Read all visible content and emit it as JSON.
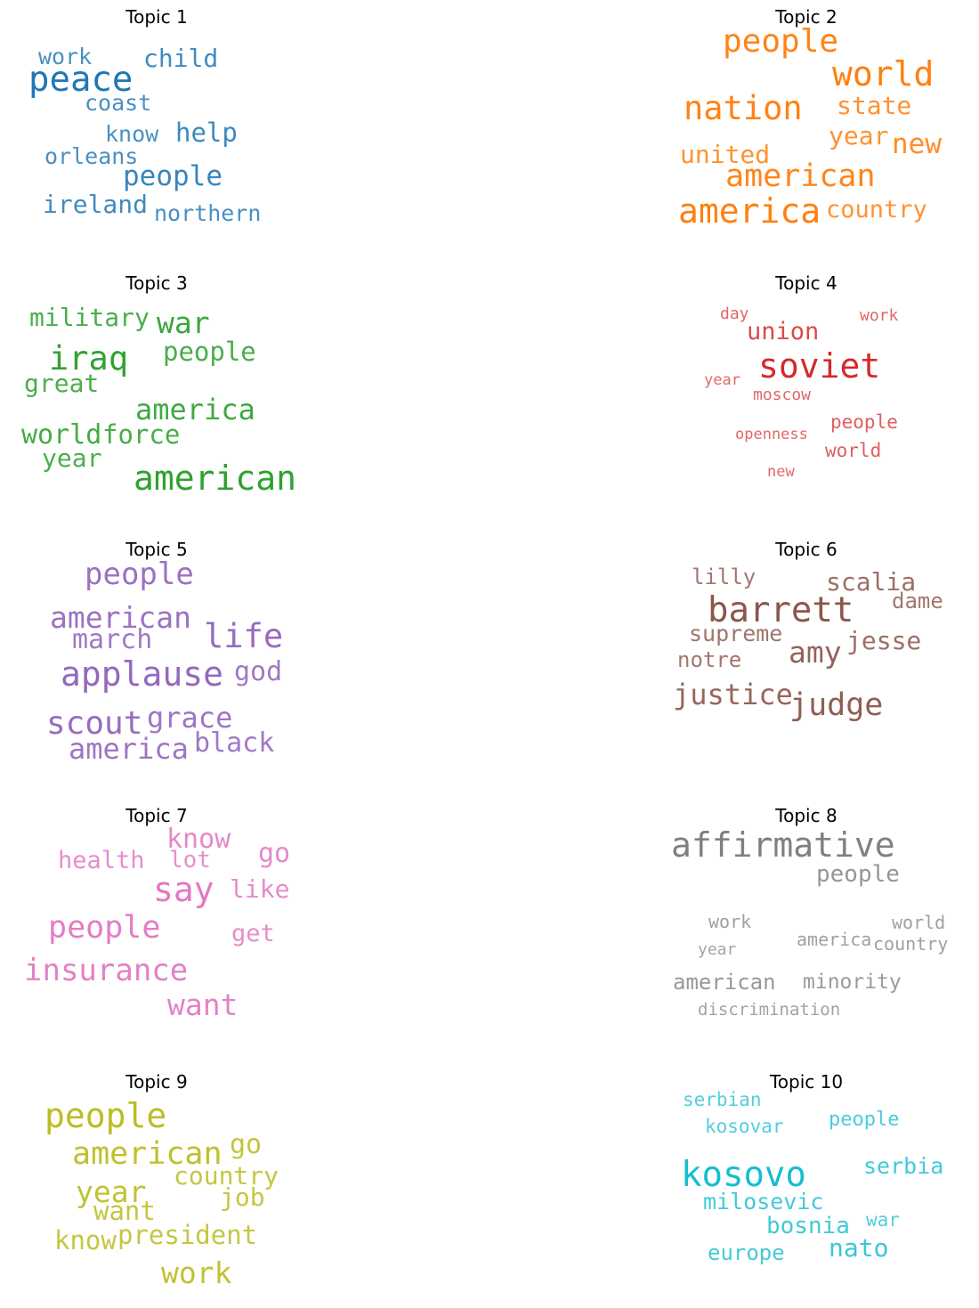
{
  "chart_data": {
    "type": "wordcloud",
    "topics": [
      {
        "title": "Topic 1",
        "color": "#1f77b4",
        "words": [
          "peace",
          "people",
          "help",
          "child",
          "ireland",
          "orleans",
          "work",
          "know",
          "coast",
          "northern"
        ]
      },
      {
        "title": "Topic 2",
        "color": "#ff7f0e",
        "words": [
          "world",
          "america",
          "nation",
          "people",
          "american",
          "new",
          "state",
          "year",
          "united",
          "country"
        ]
      },
      {
        "title": "Topic 3",
        "color": "#2ca02c",
        "words": [
          "american",
          "iraq",
          "war",
          "america",
          "world",
          "people",
          "force",
          "military",
          "great",
          "year"
        ]
      },
      {
        "title": "Topic 4",
        "color": "#d62728",
        "words": [
          "soviet",
          "union",
          "people",
          "world",
          "moscow",
          "day",
          "work",
          "year",
          "openness",
          "new"
        ]
      },
      {
        "title": "Topic 5",
        "color": "#9467bd",
        "words": [
          "applause",
          "life",
          "scout",
          "people",
          "american",
          "grace",
          "america",
          "march",
          "god",
          "black"
        ]
      },
      {
        "title": "Topic 6",
        "color": "#8c564b",
        "words": [
          "barrett",
          "judge",
          "amy",
          "justice",
          "scalia",
          "jesse",
          "supreme",
          "lilly",
          "dame",
          "notre"
        ]
      },
      {
        "title": "Topic 7",
        "color": "#e377c2",
        "words": [
          "say",
          "people",
          "insurance",
          "want",
          "know",
          "go",
          "like",
          "health",
          "get",
          "lot"
        ]
      },
      {
        "title": "Topic 8",
        "color": "#7f7f7f",
        "words": [
          "affirmative",
          "people",
          "american",
          "minority",
          "work",
          "world",
          "america",
          "country",
          "discrimination",
          "year"
        ]
      },
      {
        "title": "Topic 9",
        "color": "#bcbd22",
        "words": [
          "people",
          "american",
          "year",
          "work",
          "go",
          "want",
          "know",
          "president",
          "country",
          "job"
        ]
      },
      {
        "title": "Topic 10",
        "color": "#17becf",
        "words": [
          "kosovo",
          "nato",
          "bosnia",
          "serbia",
          "milosevic",
          "europe",
          "people",
          "serbian",
          "kosovar",
          "war"
        ]
      }
    ]
  }
}
